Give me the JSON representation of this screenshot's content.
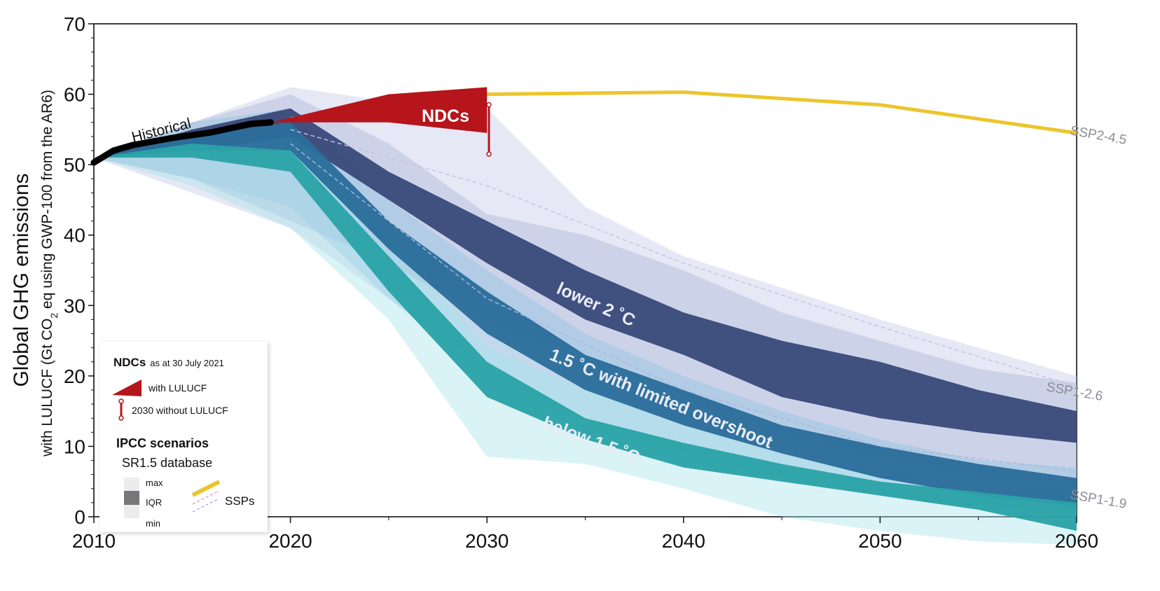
{
  "chart_data": {
    "type": "area",
    "ylabel": "Global GHG emissions",
    "ylabel_sub_prefix": "with LULUCF (Gt CO",
    "ylabel_sub_subscript": "2",
    "ylabel_sub_suffix": " eq using GWP-100 from the AR6)",
    "xlim": [
      2010,
      2060
    ],
    "ylim": [
      0,
      70
    ],
    "x_ticks": [
      "2010",
      "2020",
      "2030",
      "2040",
      "2050",
      "2060"
    ],
    "y_ticks": [
      "0",
      "10",
      "20",
      "30",
      "40",
      "50",
      "60",
      "70"
    ],
    "bands": [
      {
        "name": "lower 2 °C",
        "label": "lower 2 ˚C",
        "color": "#3a4a7a",
        "x": [
          2010,
          2015,
          2020,
          2025,
          2030,
          2035,
          2040,
          2045,
          2050,
          2055,
          2060
        ],
        "max": [
          51,
          56,
          60,
          53,
          43,
          40,
          35,
          29,
          25,
          21,
          19
        ],
        "min": [
          51,
          48,
          42,
          36,
          28,
          23,
          17,
          12,
          9,
          6,
          5
        ],
        "iqr_high": [
          51,
          55,
          58,
          49,
          42,
          35,
          29,
          25,
          22,
          18,
          15
        ],
        "iqr_low": [
          51,
          52,
          54,
          45,
          36,
          28,
          23,
          17,
          14,
          12,
          10.5
        ]
      },
      {
        "name": "1.5 °C with limited overshoot",
        "label": "1.5 ˚C with limited overshoot",
        "color": "#2b6d9b",
        "x": [
          2010,
          2015,
          2020,
          2025,
          2030,
          2035,
          2040,
          2045,
          2050,
          2055,
          2060
        ],
        "max": [
          51,
          56,
          58,
          45,
          35,
          26,
          20,
          15,
          11,
          8,
          7
        ],
        "min": [
          51,
          48,
          44,
          31,
          20,
          14,
          9,
          5,
          3,
          1,
          0
        ],
        "iqr_high": [
          51,
          54,
          56,
          42,
          32,
          23,
          18,
          13,
          10,
          7.5,
          5.5
        ],
        "iqr_low": [
          51,
          52,
          52,
          38,
          26,
          18,
          13,
          9,
          5.5,
          3,
          1.5
        ]
      },
      {
        "name": "below 1.5 °C",
        "label": "below 1.5 ˚C",
        "color": "#2ba3a8",
        "x": [
          2010,
          2015,
          2020,
          2025,
          2030,
          2035,
          2040,
          2045,
          2050,
          2055,
          2060
        ],
        "max": [
          51,
          55,
          57,
          40,
          24,
          18,
          13,
          9,
          6,
          4,
          3
        ],
        "min": [
          51,
          47,
          41,
          28,
          8.5,
          7.5,
          4,
          0,
          -2,
          -3.5,
          -4
        ],
        "iqr_high": [
          51,
          53,
          52,
          37,
          22,
          14,
          10.5,
          7.5,
          5,
          3.5,
          2
        ],
        "iqr_low": [
          51,
          51,
          49,
          32,
          17,
          11,
          7,
          5,
          3,
          1,
          -2
        ]
      }
    ],
    "ssp_lines": [
      {
        "name": "SSP2-4.5",
        "label": "SSP2-4.5",
        "style": "solid",
        "color": "#ecc52c",
        "x": [
          2020,
          2030,
          2040,
          2050,
          2060
        ],
        "y": [
          56.5,
          60,
          60.3,
          58.5,
          54.5
        ]
      },
      {
        "name": "SSP1-2.6",
        "label": "SSP1-2.6",
        "style": "dashed",
        "color": "#c9bfe0",
        "x": [
          2020,
          2030,
          2040,
          2050,
          2060
        ],
        "y": [
          55,
          47,
          36,
          27,
          18.5
        ]
      },
      {
        "name": "SSP1-1.9",
        "label": "SSP1-1.9",
        "style": "dashed",
        "color": "#aab8de",
        "x": [
          2020,
          2030,
          2040,
          2050,
          2060
        ],
        "y": [
          53,
          31,
          18,
          10,
          6.5
        ]
      }
    ],
    "historical": {
      "label": "Historical",
      "x": [
        2010,
        2011,
        2012,
        2013,
        2014,
        2015,
        2016,
        2017,
        2018,
        2019
      ],
      "y": [
        50.3,
        52,
        52.8,
        53.3,
        53.8,
        54.2,
        54.6,
        55.2,
        55.8,
        56
      ]
    },
    "ndc": {
      "label": "NDCs",
      "x": [
        2019,
        2025,
        2030
      ],
      "high": [
        56,
        60,
        61
      ],
      "low": [
        56,
        56,
        54.5
      ],
      "without_lulucf_2030": [
        51.5,
        58.5
      ],
      "color": "#b5151b"
    },
    "legend": {
      "ndc_title": "NDCs",
      "ndc_date": "as at 30 July 2021",
      "with_lulucf": "with LULUCF",
      "without_lulucf": "2030 without LULUCF",
      "ipcc_title": "IPCC scenarios",
      "sr15": "SR1.5 database",
      "max": "max",
      "iqr": "IQR",
      "min": "min",
      "ssps": "SSPs"
    }
  }
}
